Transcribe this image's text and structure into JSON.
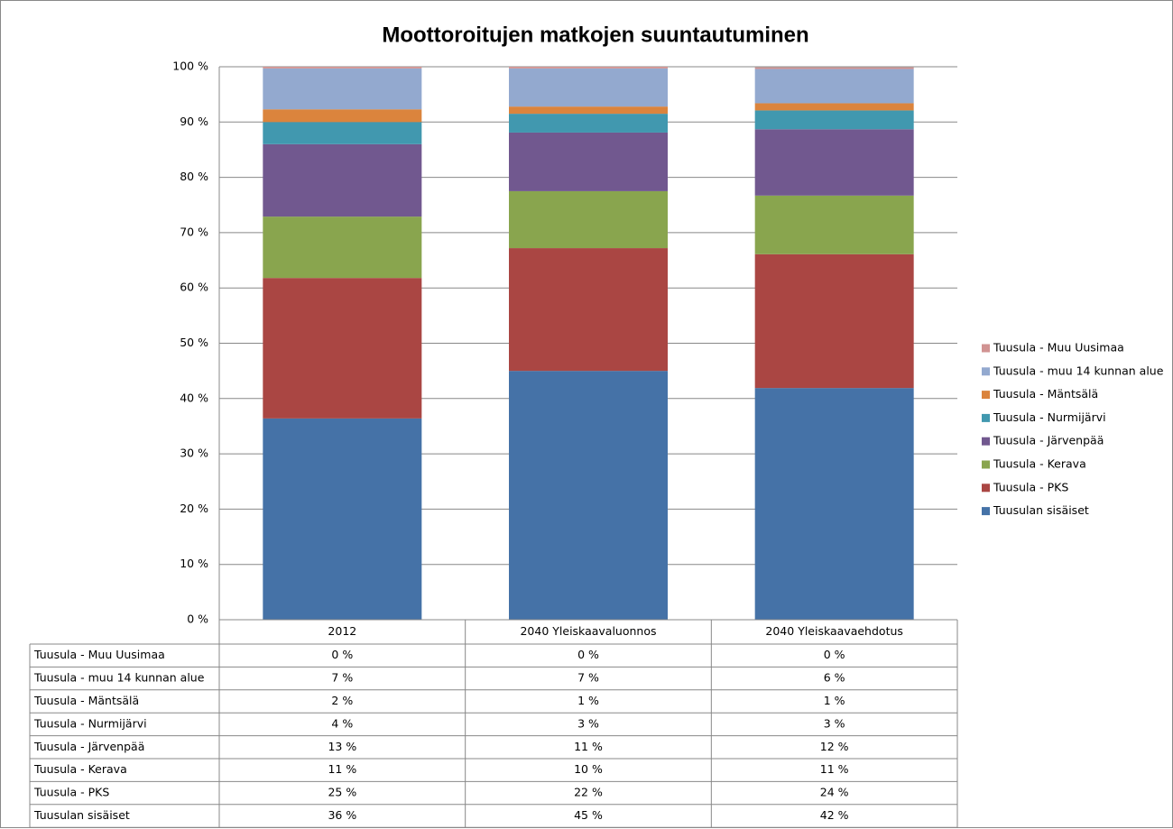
{
  "chart_data": {
    "type": "stacked_bar",
    "title": "Moottoroitujen matkojen suuntautuminen",
    "categories": [
      "2012",
      "2040 Yleiskaavaluonnos",
      "2040 Yleiskaavaehdotus"
    ],
    "ylim": [
      0,
      100
    ],
    "yticks": [
      {
        "value": 0,
        "label": "0 %"
      },
      {
        "value": 10,
        "label": "10 %"
      },
      {
        "value": 20,
        "label": "20 %"
      },
      {
        "value": 30,
        "label": "30 %"
      },
      {
        "value": 40,
        "label": "40 %"
      },
      {
        "value": 50,
        "label": "50 %"
      },
      {
        "value": 60,
        "label": "60 %"
      },
      {
        "value": 70,
        "label": "70 %"
      },
      {
        "value": 80,
        "label": "80 %"
      },
      {
        "value": 90,
        "label": "90 %"
      },
      {
        "value": 100,
        "label": "100 %"
      }
    ],
    "grid": true,
    "legend": "right",
    "series": [
      {
        "name": "Tuusulan sisäiset",
        "color": "#4572a7",
        "values": [
          36.4,
          45.0,
          41.9
        ],
        "value_labels": [
          "36 %",
          "45 %",
          "42 %"
        ]
      },
      {
        "name": "Tuusula - PKS",
        "color": "#aa4643",
        "values": [
          25.4,
          22.2,
          24.2
        ],
        "value_labels": [
          "25 %",
          "22 %",
          "24 %"
        ]
      },
      {
        "name": "Tuusula - Kerava",
        "color": "#89a54e",
        "values": [
          11.1,
          10.3,
          10.6
        ],
        "value_labels": [
          "11 %",
          "10 %",
          "11 %"
        ]
      },
      {
        "name": "Tuusula - Järvenpää",
        "color": "#71588f",
        "values": [
          13.1,
          10.6,
          12.0
        ],
        "value_labels": [
          "13 %",
          "11 %",
          "12 %"
        ]
      },
      {
        "name": "Tuusula - Nurmijärvi",
        "color": "#4198af",
        "values": [
          4.0,
          3.4,
          3.4
        ],
        "value_labels": [
          "4 %",
          "3 %",
          "3 %"
        ]
      },
      {
        "name": "Tuusula - Mäntsälä",
        "color": "#db843d",
        "values": [
          2.3,
          1.3,
          1.3
        ],
        "value_labels": [
          "2 %",
          "1 %",
          "1 %"
        ]
      },
      {
        "name": "Tuusula - muu 14 kunnan alue",
        "color": "#93a9cf",
        "values": [
          7.4,
          6.9,
          6.2
        ],
        "value_labels": [
          "7 %",
          "7 %",
          "6 %"
        ]
      },
      {
        "name": "Tuusula - Muu Uusimaa",
        "color": "#d19392",
        "values": [
          0.3,
          0.3,
          0.3
        ],
        "value_labels": [
          "0 %",
          "0 %",
          "0 %"
        ]
      }
    ]
  }
}
